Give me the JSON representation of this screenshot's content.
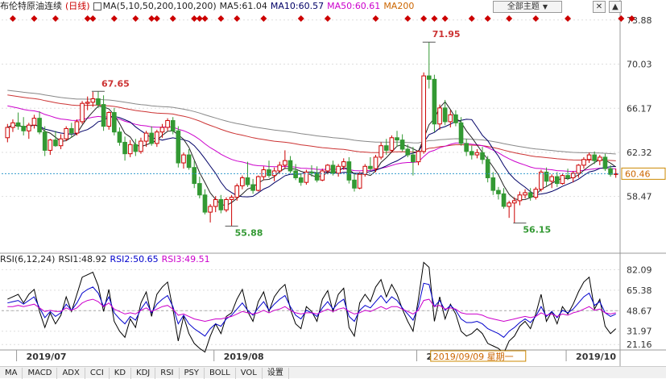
{
  "price_header": {
    "title": "布伦特原油连续",
    "period": "(日线)",
    "ma_params": "MA(5,10,50,200,100,200)",
    "ma5": "MA5:61.04",
    "ma10": "MA10:60.57",
    "ma50": "MA50:60.61",
    "ma200": "MA200",
    "topic_button": "全部主题",
    "colors": {
      "title": "#222222",
      "period": "#cc0000",
      "ma5": "#222222",
      "ma10": "#000066",
      "ma50": "#cc00cc",
      "ma200": "#cc6600"
    }
  },
  "rsi_header": {
    "params": "RSI(6,12,24)",
    "rsi1": "RSI1:48.92",
    "rsi2": "RSI2:50.65",
    "rsi3": "RSI3:49.51",
    "colors": {
      "rsi1": "#000000",
      "rsi2": "#0000cc",
      "rsi3": "#cc00cc"
    }
  },
  "tabs": [
    "MA",
    "MACD",
    "ADX",
    "CCI",
    "KD",
    "KDJ",
    "RSI",
    "PSY",
    "BOLL",
    "VOL",
    "设置"
  ],
  "chart_data": [
    {
      "type": "candlestick",
      "y_ticks": [
        "73.88",
        "70.03",
        "66.17",
        "62.32",
        "58.47"
      ],
      "ylim": [
        54.5,
        74.5
      ],
      "current_price_label": "60.46",
      "current_price": 60.46,
      "x_labels": [
        "2019/07",
        "2019/08",
        "2019/0",
        "2019/10"
      ],
      "crosshair_label": "2019/09/09 星期一",
      "annotations": [
        {
          "text": "67.65",
          "value": 67.65,
          "bar": 17,
          "color": "#cc3333",
          "pos": "above"
        },
        {
          "text": "55.88",
          "value": 55.88,
          "bar": 42,
          "color": "#339933",
          "pos": "below"
        },
        {
          "text": "71.95",
          "value": 71.95,
          "bar": 79,
          "color": "#cc3333",
          "pos": "above"
        },
        {
          "text": "56.15",
          "value": 56.15,
          "bar": 96,
          "color": "#339933",
          "pos": "below"
        }
      ],
      "event_markers": [
        1,
        5,
        9,
        15,
        16,
        20,
        24,
        27,
        28,
        31,
        35,
        36,
        37,
        40,
        43,
        48,
        55,
        60,
        69,
        75,
        78,
        80,
        82,
        87,
        90,
        94,
        99,
        105,
        115,
        117
      ],
      "colors": {
        "up": "#cc0000",
        "down": "#339933",
        "ma5": "#222222",
        "ma10": "#000066",
        "ma50": "#cc00cc",
        "ma200": "#cc3333",
        "ma100": "#888888",
        "grid": "#dddddd"
      },
      "ohlc": [
        [
          63.6,
          64.8,
          63.2,
          64.5
        ],
        [
          64.5,
          65.2,
          64.1,
          64.9
        ],
        [
          64.9,
          65.8,
          64.3,
          64.6
        ],
        [
          64.6,
          65.4,
          63.8,
          64.2
        ],
        [
          64.2,
          64.9,
          63.5,
          64.7
        ],
        [
          64.7,
          65.6,
          64.4,
          65.3
        ],
        [
          65.3,
          65.9,
          63.9,
          64.1
        ],
        [
          64.1,
          64.6,
          62.0,
          62.5
        ],
        [
          62.5,
          63.5,
          62.1,
          63.4
        ],
        [
          63.4,
          64.2,
          62.8,
          62.9
        ],
        [
          62.9,
          63.9,
          62.6,
          63.5
        ],
        [
          63.5,
          64.6,
          63.3,
          64.4
        ],
        [
          64.4,
          64.9,
          63.6,
          64.0
        ],
        [
          64.0,
          65.2,
          63.8,
          65.0
        ],
        [
          65.0,
          66.8,
          64.8,
          66.6
        ],
        [
          66.6,
          67.2,
          66.0,
          66.7
        ],
        [
          66.7,
          67.6,
          66.3,
          67.0
        ],
        [
          67.0,
          67.65,
          66.2,
          66.5
        ],
        [
          66.5,
          67.3,
          64.2,
          64.6
        ],
        [
          64.6,
          65.9,
          64.3,
          65.8
        ],
        [
          65.8,
          66.2,
          63.8,
          64.1
        ],
        [
          64.1,
          64.5,
          62.9,
          63.2
        ],
        [
          63.2,
          63.7,
          61.6,
          62.2
        ],
        [
          62.2,
          63.4,
          61.9,
          63.0
        ],
        [
          63.0,
          63.5,
          62.0,
          62.4
        ],
        [
          62.4,
          63.6,
          62.2,
          63.3
        ],
        [
          63.3,
          64.2,
          62.8,
          64.0
        ],
        [
          64.0,
          64.6,
          62.9,
          63.1
        ],
        [
          63.1,
          64.3,
          62.8,
          64.1
        ],
        [
          64.1,
          64.8,
          63.6,
          64.5
        ],
        [
          64.5,
          65.3,
          64.2,
          65.1
        ],
        [
          65.1,
          65.4,
          63.9,
          64.2
        ],
        [
          64.2,
          64.6,
          61.0,
          61.4
        ],
        [
          61.4,
          62.3,
          60.9,
          62.1
        ],
        [
          62.1,
          62.6,
          60.8,
          61.0
        ],
        [
          61.0,
          61.6,
          59.2,
          59.6
        ],
        [
          59.6,
          60.2,
          58.3,
          58.6
        ],
        [
          58.6,
          59.1,
          56.9,
          57.1
        ],
        [
          57.1,
          57.8,
          56.2,
          57.6
        ],
        [
          57.6,
          58.5,
          57.1,
          58.2
        ],
        [
          58.2,
          58.6,
          57.0,
          57.3
        ],
        [
          57.3,
          58.4,
          57.1,
          58.2
        ],
        [
          58.2,
          58.6,
          55.88,
          58.4
        ],
        [
          58.4,
          59.6,
          58.1,
          59.4
        ],
        [
          59.4,
          60.3,
          59.1,
          60.1
        ],
        [
          60.1,
          61.5,
          59.3,
          59.5
        ],
        [
          59.5,
          60.0,
          58.7,
          59.0
        ],
        [
          59.0,
          60.3,
          58.9,
          60.2
        ],
        [
          60.2,
          61.1,
          59.9,
          60.8
        ],
        [
          60.8,
          61.6,
          60.1,
          60.3
        ],
        [
          60.3,
          61.0,
          59.8,
          60.7
        ],
        [
          60.7,
          61.5,
          60.5,
          61.2
        ],
        [
          61.2,
          62.5,
          60.9,
          61.6
        ],
        [
          61.6,
          62.0,
          60.5,
          60.7
        ],
        [
          60.7,
          61.3,
          59.9,
          60.1
        ],
        [
          60.1,
          60.5,
          59.4,
          59.7
        ],
        [
          59.7,
          60.8,
          59.5,
          60.6
        ],
        [
          60.6,
          61.2,
          60.2,
          60.5
        ],
        [
          60.5,
          61.1,
          59.7,
          59.9
        ],
        [
          59.9,
          60.9,
          59.8,
          60.7
        ],
        [
          60.7,
          61.3,
          60.4,
          61.2
        ],
        [
          61.2,
          61.6,
          60.3,
          60.5
        ],
        [
          60.5,
          61.3,
          60.2,
          61.1
        ],
        [
          61.1,
          61.8,
          60.8,
          61.5
        ],
        [
          61.5,
          61.9,
          59.6,
          59.9
        ],
        [
          59.9,
          60.4,
          58.9,
          59.2
        ],
        [
          59.2,
          60.6,
          59.1,
          60.4
        ],
        [
          60.4,
          61.3,
          60.2,
          61.1
        ],
        [
          61.1,
          61.9,
          60.7,
          60.9
        ],
        [
          60.9,
          62.1,
          60.6,
          61.9
        ],
        [
          61.9,
          63.2,
          61.7,
          62.9
        ],
        [
          62.9,
          63.5,
          62.1,
          62.5
        ],
        [
          62.5,
          63.8,
          62.3,
          63.6
        ],
        [
          63.6,
          64.2,
          62.8,
          63.4
        ],
        [
          63.4,
          63.9,
          62.4,
          62.6
        ],
        [
          62.6,
          63.0,
          61.9,
          62.1
        ],
        [
          62.1,
          62.8,
          60.3,
          61.5
        ],
        [
          61.5,
          62.5,
          61.2,
          62.4
        ],
        [
          62.4,
          69.3,
          62.2,
          69.0
        ],
        [
          69.0,
          71.95,
          67.9,
          68.7
        ],
        [
          68.7,
          69.1,
          64.1,
          64.8
        ],
        [
          64.8,
          66.5,
          64.3,
          66.2
        ],
        [
          66.2,
          66.9,
          64.7,
          65.0
        ],
        [
          65.0,
          66.0,
          64.5,
          65.6
        ],
        [
          65.6,
          66.0,
          64.6,
          64.9
        ],
        [
          64.9,
          65.4,
          62.9,
          63.1
        ],
        [
          63.1,
          63.5,
          62.0,
          62.4
        ],
        [
          62.4,
          62.9,
          61.7,
          62.1
        ],
        [
          62.1,
          62.6,
          61.8,
          62.3
        ],
        [
          62.3,
          62.8,
          61.3,
          61.7
        ],
        [
          61.7,
          62.0,
          59.7,
          60.1
        ],
        [
          60.1,
          60.6,
          58.6,
          59.0
        ],
        [
          59.0,
          59.3,
          58.2,
          58.7
        ],
        [
          58.7,
          59.2,
          57.4,
          57.6
        ],
        [
          57.6,
          58.1,
          56.6,
          57.9
        ],
        [
          57.9,
          58.4,
          56.15,
          58.1
        ],
        [
          58.1,
          58.9,
          57.7,
          58.6
        ],
        [
          58.6,
          59.1,
          58.3,
          58.8
        ],
        [
          58.8,
          59.2,
          58.1,
          58.4
        ],
        [
          58.4,
          59.3,
          58.2,
          59.1
        ],
        [
          59.1,
          60.8,
          58.9,
          60.6
        ],
        [
          60.6,
          61.0,
          59.4,
          59.8
        ],
        [
          59.8,
          60.4,
          59.2,
          60.2
        ],
        [
          60.2,
          60.6,
          59.3,
          59.6
        ],
        [
          59.6,
          60.5,
          59.5,
          60.3
        ],
        [
          60.3,
          60.9,
          59.9,
          60.1
        ],
        [
          60.1,
          60.7,
          59.7,
          60.5
        ],
        [
          60.5,
          61.3,
          60.1,
          61.2
        ],
        [
          61.2,
          61.9,
          60.9,
          61.7
        ],
        [
          61.7,
          62.3,
          61.4,
          62.1
        ],
        [
          62.1,
          62.4,
          61.3,
          61.6
        ],
        [
          61.6,
          62.1,
          61.2,
          61.9
        ],
        [
          61.9,
          62.2,
          60.7,
          60.9
        ],
        [
          60.9,
          61.2,
          60.2,
          60.4
        ],
        [
          60.4,
          60.9,
          60.1,
          60.46
        ]
      ]
    },
    {
      "type": "line",
      "title": "RSI(6,12,24)",
      "y_ticks": [
        "82.09",
        "65.38",
        "48.67",
        "31.97",
        "21.16"
      ],
      "ylim": [
        18,
        85
      ],
      "reference_line": 48.67,
      "series": [
        {
          "name": "RSI1",
          "color": "#000000",
          "values": [
            58,
            60,
            62,
            55,
            62,
            66,
            48,
            35,
            47,
            38,
            45,
            60,
            48,
            62,
            76,
            78,
            80,
            69,
            48,
            66,
            40,
            32,
            27,
            42,
            35,
            55,
            64,
            44,
            62,
            68,
            72,
            50,
            24,
            44,
            30,
            22,
            18,
            15,
            28,
            38,
            30,
            44,
            47,
            58,
            66,
            48,
            40,
            56,
            64,
            48,
            60,
            66,
            70,
            50,
            38,
            34,
            52,
            48,
            40,
            58,
            65,
            48,
            62,
            67,
            35,
            28,
            55,
            62,
            56,
            68,
            74,
            60,
            70,
            62,
            50,
            40,
            32,
            58,
            88,
            84,
            40,
            60,
            42,
            54,
            46,
            32,
            28,
            30,
            34,
            30,
            22,
            20,
            18,
            14,
            24,
            28,
            36,
            40,
            34,
            46,
            62,
            40,
            48,
            38,
            52,
            46,
            54,
            64,
            72,
            76,
            50,
            58,
            36,
            30,
            34
          ]
        },
        {
          "name": "RSI2",
          "color": "#0000cc",
          "values": [
            55,
            56,
            57,
            54,
            57,
            60,
            51,
            43,
            48,
            44,
            47,
            54,
            49,
            55,
            63,
            66,
            68,
            63,
            52,
            60,
            47,
            42,
            38,
            44,
            41,
            50,
            56,
            47,
            54,
            58,
            61,
            52,
            38,
            45,
            38,
            34,
            31,
            28,
            34,
            38,
            36,
            42,
            45,
            50,
            55,
            49,
            45,
            51,
            56,
            49,
            54,
            58,
            61,
            52,
            45,
            42,
            49,
            47,
            44,
            51,
            56,
            50,
            55,
            58,
            44,
            40,
            49,
            53,
            51,
            56,
            61,
            55,
            60,
            57,
            51,
            46,
            41,
            52,
            71,
            70,
            52,
            57,
            49,
            53,
            49,
            42,
            39,
            39,
            40,
            38,
            34,
            32,
            30,
            27,
            32,
            35,
            39,
            42,
            39,
            44,
            52,
            44,
            48,
            43,
            49,
            47,
            50,
            55,
            60,
            63,
            53,
            56,
            47,
            44,
            46
          ]
        },
        {
          "name": "RSI3",
          "color": "#cc00cc",
          "values": [
            52,
            52,
            53,
            52,
            53,
            54,
            51,
            48,
            49,
            48,
            48,
            51,
            49,
            51,
            55,
            57,
            58,
            56,
            52,
            55,
            50,
            48,
            46,
            47,
            46,
            49,
            51,
            48,
            50,
            52,
            53,
            50,
            45,
            46,
            44,
            42,
            41,
            40,
            41,
            42,
            42,
            43,
            44,
            46,
            48,
            47,
            46,
            47,
            49,
            47,
            49,
            50,
            52,
            49,
            47,
            46,
            47,
            47,
            46,
            48,
            50,
            48,
            50,
            51,
            48,
            46,
            47,
            49,
            48,
            50,
            52,
            50,
            52,
            52,
            50,
            48,
            46,
            49,
            57,
            58,
            52,
            53,
            50,
            51,
            50,
            47,
            46,
            46,
            46,
            45,
            43,
            42,
            41,
            40,
            41,
            42,
            43,
            44,
            43,
            44,
            47,
            45,
            46,
            44,
            46,
            45,
            47,
            48,
            50,
            52,
            49,
            50,
            47,
            46,
            47
          ]
        }
      ]
    }
  ]
}
